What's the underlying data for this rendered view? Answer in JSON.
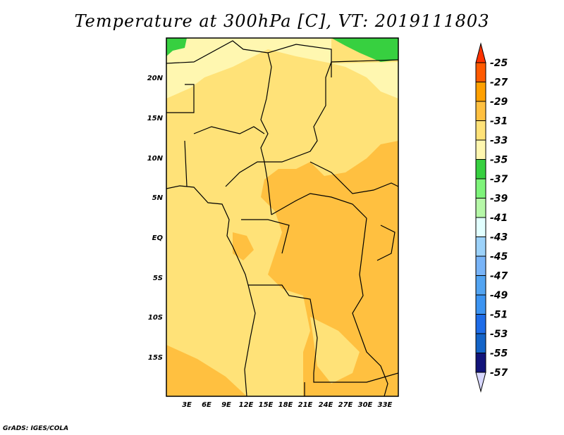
{
  "title": "Temperature at 300hPa [C], VT: 2019111803",
  "credit": "GrADS: IGES/COLA",
  "lat_labels": [
    "20N",
    "15N",
    "10N",
    "5N",
    "EQ",
    "5S",
    "10S",
    "15S"
  ],
  "lon_labels": [
    "3E",
    "6E",
    "9E",
    "12E",
    "15E",
    "18E",
    "21E",
    "24E",
    "27E",
    "30E",
    "33E"
  ],
  "colorbar": {
    "labels": [
      "-25",
      "-27",
      "-29",
      "-31",
      "-33",
      "-35",
      "-37",
      "-39",
      "-41",
      "-43",
      "-45",
      "-47",
      "-49",
      "-51",
      "-53",
      "-55",
      "-57"
    ],
    "colors": [
      "#FF5A00",
      "#FFA000",
      "#FFC040",
      "#FFE278",
      "#FFF7B0",
      "#37D040",
      "#7EF47A",
      "#B6F8A8",
      "#E2FFFF",
      "#9CD2FA",
      "#78B4F8",
      "#52A4F2",
      "#3C94F2",
      "#1E6CE8",
      "#1464C8",
      "#12147A"
    ],
    "top_arrow_color": "#FF3200",
    "bottom_arrow_color": "#D8D8FF"
  }
}
